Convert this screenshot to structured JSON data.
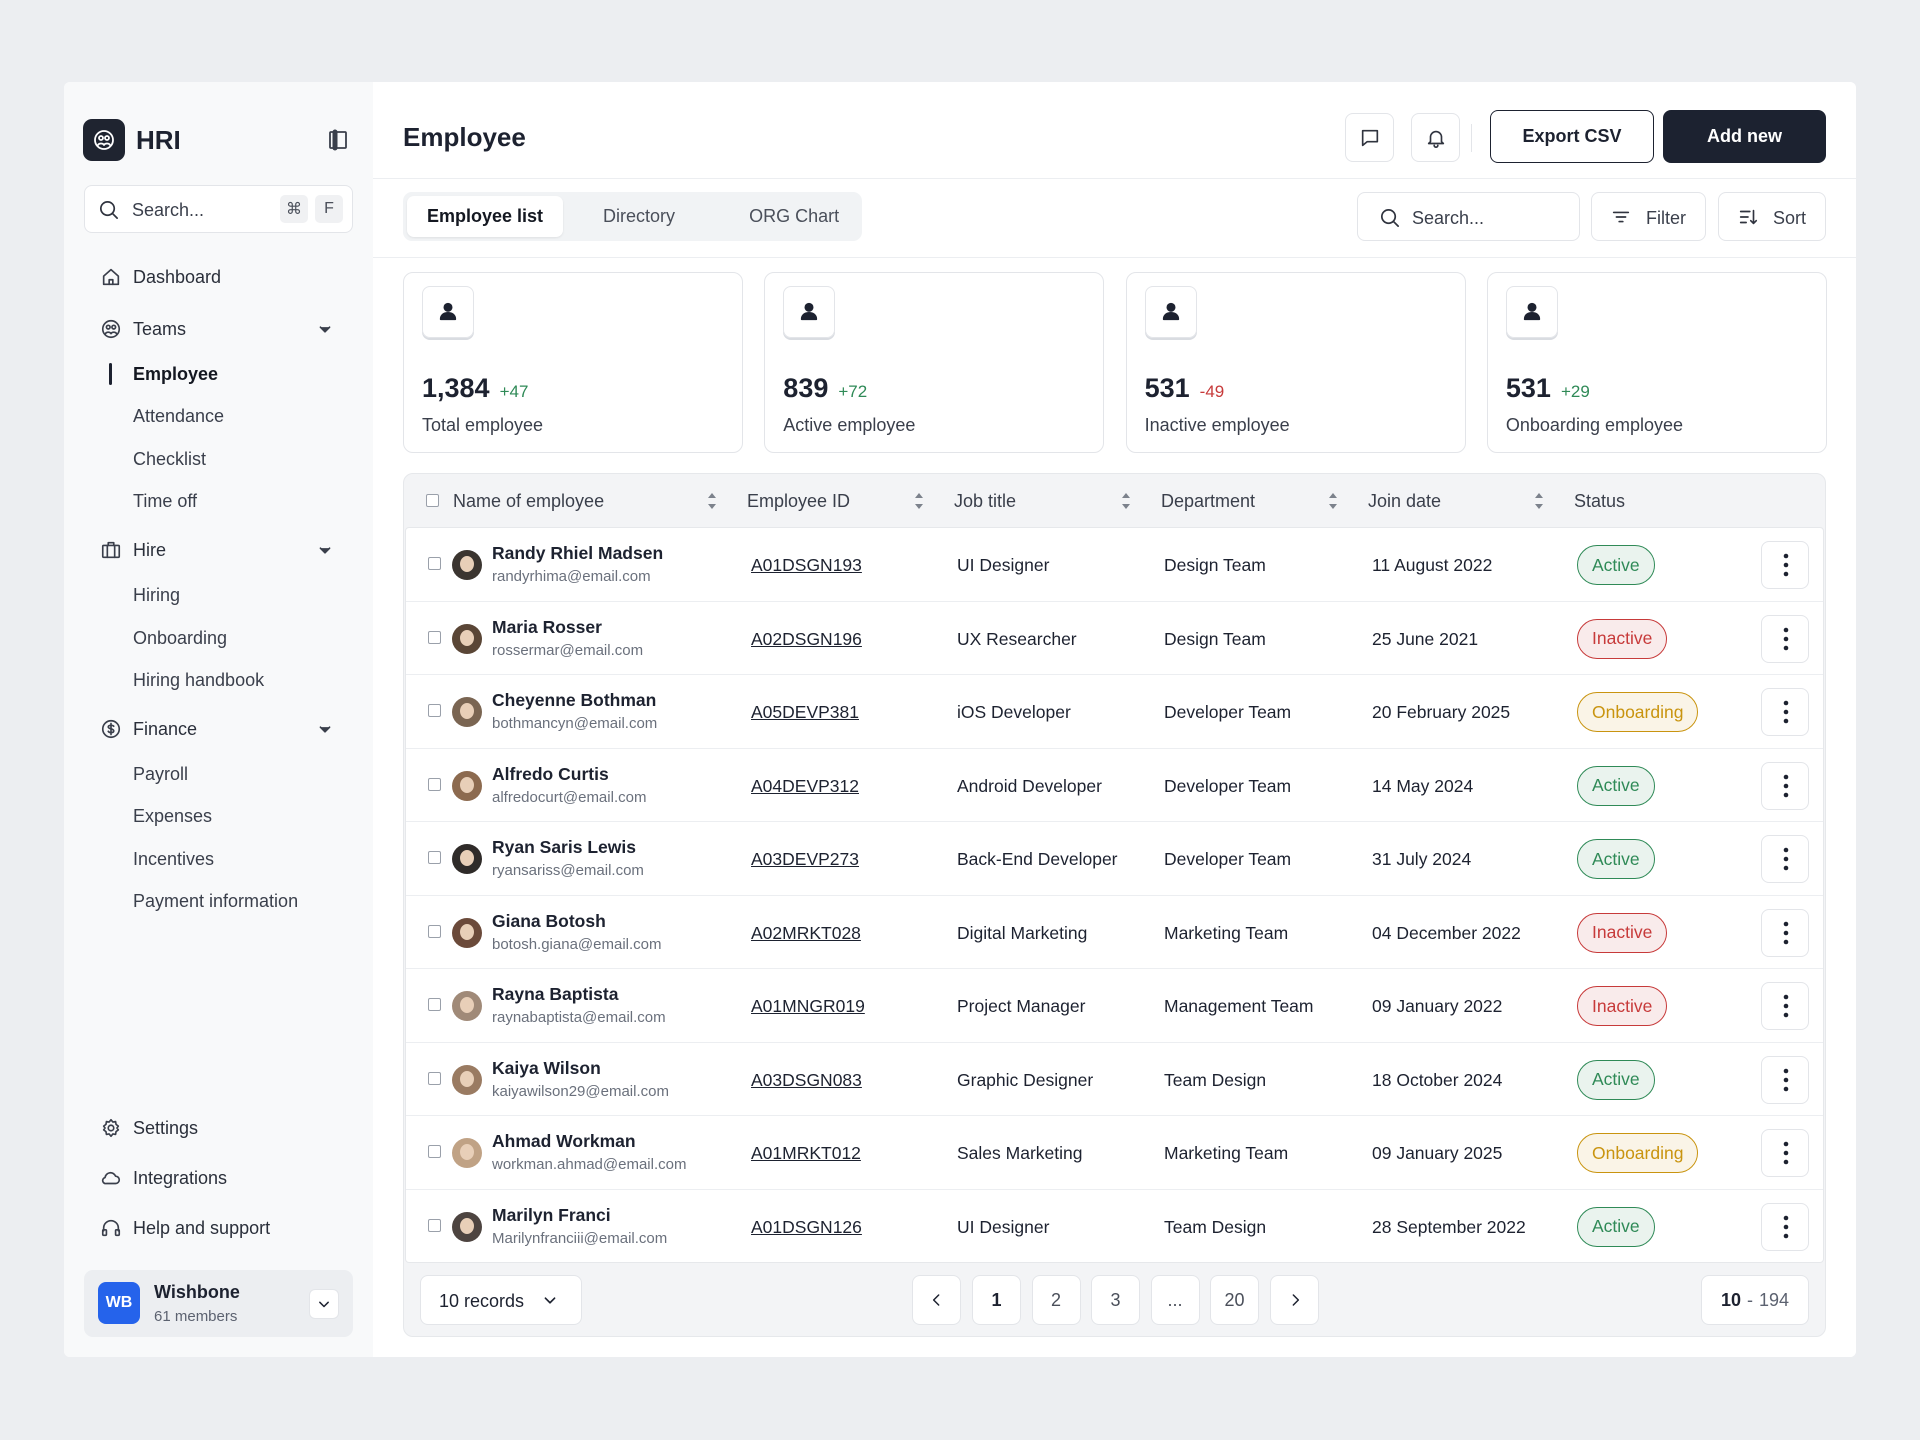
{
  "brand": "HRI",
  "sidebar": {
    "search_placeholder": "Search...",
    "shortcut": [
      "⌘",
      "F"
    ],
    "navigation": [
      {
        "label": "Dashboard"
      },
      {
        "label": "Teams",
        "children": [
          {
            "label": "Employee",
            "active": true
          },
          {
            "label": "Attendance"
          },
          {
            "label": "Checklist"
          },
          {
            "label": "Time off"
          }
        ]
      },
      {
        "label": "Hire",
        "children": [
          {
            "label": "Hiring"
          },
          {
            "label": "Onboarding"
          },
          {
            "label": "Hiring handbook"
          }
        ]
      },
      {
        "label": "Finance",
        "children": [
          {
            "label": "Payroll"
          },
          {
            "label": "Expenses"
          },
          {
            "label": "Incentives"
          },
          {
            "label": "Payment information"
          }
        ]
      }
    ],
    "footer": [
      {
        "label": "Settings"
      },
      {
        "label": "Integrations"
      },
      {
        "label": "Help and support"
      }
    ],
    "workspace": {
      "initials": "WB",
      "name": "Wishbone",
      "members": "61 members"
    }
  },
  "header": {
    "title": "Employee",
    "export": "Export CSV",
    "add": "Add new"
  },
  "tabs": [
    {
      "label": "Employee list",
      "active": true
    },
    {
      "label": "Directory"
    },
    {
      "label": "ORG Chart"
    }
  ],
  "toolbar": {
    "search_placeholder": "Search...",
    "filter": "Filter",
    "sort": "Sort"
  },
  "stats": [
    {
      "value": "1,384",
      "change": {
        "text": "+47",
        "color": "#2f8a57"
      },
      "label": "Total employee"
    },
    {
      "value": "839",
      "change": {
        "text": "+72",
        "color": "#2f8a57"
      },
      "label": "Active employee"
    },
    {
      "value": "531",
      "change": {
        "text": "-49",
        "color": "#c73a3a"
      },
      "label": "Inactive employee"
    },
    {
      "value": "531",
      "change": {
        "text": "+29",
        "color": "#2f8a57"
      },
      "label": "Onboarding employee"
    }
  ],
  "table": {
    "columns": [
      {
        "label": "Name of employee",
        "sortable": true
      },
      {
        "label": "Employee ID",
        "sortable": true
      },
      {
        "label": "Job title",
        "sortable": true
      },
      {
        "label": "Department",
        "sortable": true
      },
      {
        "label": "Join date",
        "sortable": true
      },
      {
        "label": "Status",
        "sortable": false
      }
    ],
    "rows": [
      {
        "name": "Randy Rhiel Madsen",
        "email": "randyrhima@email.com",
        "id": "A01DSGN193",
        "job": "UI Designer",
        "department": "Design Team",
        "join_date": "11 August 2022",
        "status": {
          "text": "Active",
          "color": "#2f8a57"
        }
      },
      {
        "name": "Maria Rosser",
        "email": "rossermar@email.com",
        "id": "A02DSGN196",
        "job": "UX Researcher",
        "department": "Design Team",
        "join_date": "25 June 2021",
        "status": {
          "text": "Inactive",
          "color": "#c73a3a"
        }
      },
      {
        "name": "Cheyenne Bothman",
        "email": "bothmancyn@email.com",
        "id": "A05DEVP381",
        "job": "iOS Developer",
        "department": "Developer Team",
        "join_date": "20 February 2025",
        "status": {
          "text": "Onboarding",
          "color": "#c9940f"
        }
      },
      {
        "name": "Alfredo Curtis",
        "email": "alfredocurt@email.com",
        "id": "A04DEVP312",
        "job": "Android Developer",
        "department": "Developer Team",
        "join_date": "14 May 2024",
        "status": {
          "text": "Active",
          "color": "#2f8a57"
        }
      },
      {
        "name": "Ryan Saris Lewis",
        "email": "ryansariss@email.com",
        "id": "A03DEVP273",
        "job": "Back-End Developer",
        "department": "Developer Team",
        "join_date": "31 July 2024",
        "status": {
          "text": "Active",
          "color": "#2f8a57"
        }
      },
      {
        "name": "Giana Botosh",
        "email": "botosh.giana@email.com",
        "id": "A02MRKT028",
        "job": "Digital Marketing",
        "department": "Marketing Team",
        "join_date": "04 December 2022",
        "status": {
          "text": "Inactive",
          "color": "#c73a3a"
        }
      },
      {
        "name": "Rayna Baptista",
        "email": "raynabaptista@email.com",
        "id": "A01MNGR019",
        "job": "Project Manager",
        "department": "Management Team",
        "join_date": "09 January 2022",
        "status": {
          "text": "Inactive",
          "color": "#c73a3a"
        }
      },
      {
        "name": "Kaiya Wilson",
        "email": "kaiyawilson29@email.com",
        "id": "A03DSGN083",
        "job": "Graphic Designer",
        "department": "Team Design",
        "join_date": "18 October 2024",
        "status": {
          "text": "Active",
          "color": "#2f8a57"
        }
      },
      {
        "name": "Ahmad Workman",
        "email": "workman.ahmad@email.com",
        "id": "A01MRKT012",
        "job": "Sales Marketing",
        "department": "Marketing Team",
        "join_date": "09 January 2025",
        "status": {
          "text": "Onboarding",
          "color": "#c9940f"
        }
      },
      {
        "name": "Marilyn Franci",
        "email": "Marilynfranciii@email.com",
        "id": "A01DSGN126",
        "job": "UI Designer",
        "department": "Team Design",
        "join_date": "28 September 2022",
        "status": {
          "text": "Active",
          "color": "#2f8a57"
        }
      }
    ]
  },
  "pagination": {
    "records": "10 records",
    "pages": [
      {
        "label": "1",
        "active": true
      },
      {
        "label": "2"
      },
      {
        "label": "3"
      },
      {
        "label": "..."
      },
      {
        "label": "20"
      }
    ],
    "range": {
      "current": "10",
      "separator": "-",
      "total": "194"
    }
  }
}
